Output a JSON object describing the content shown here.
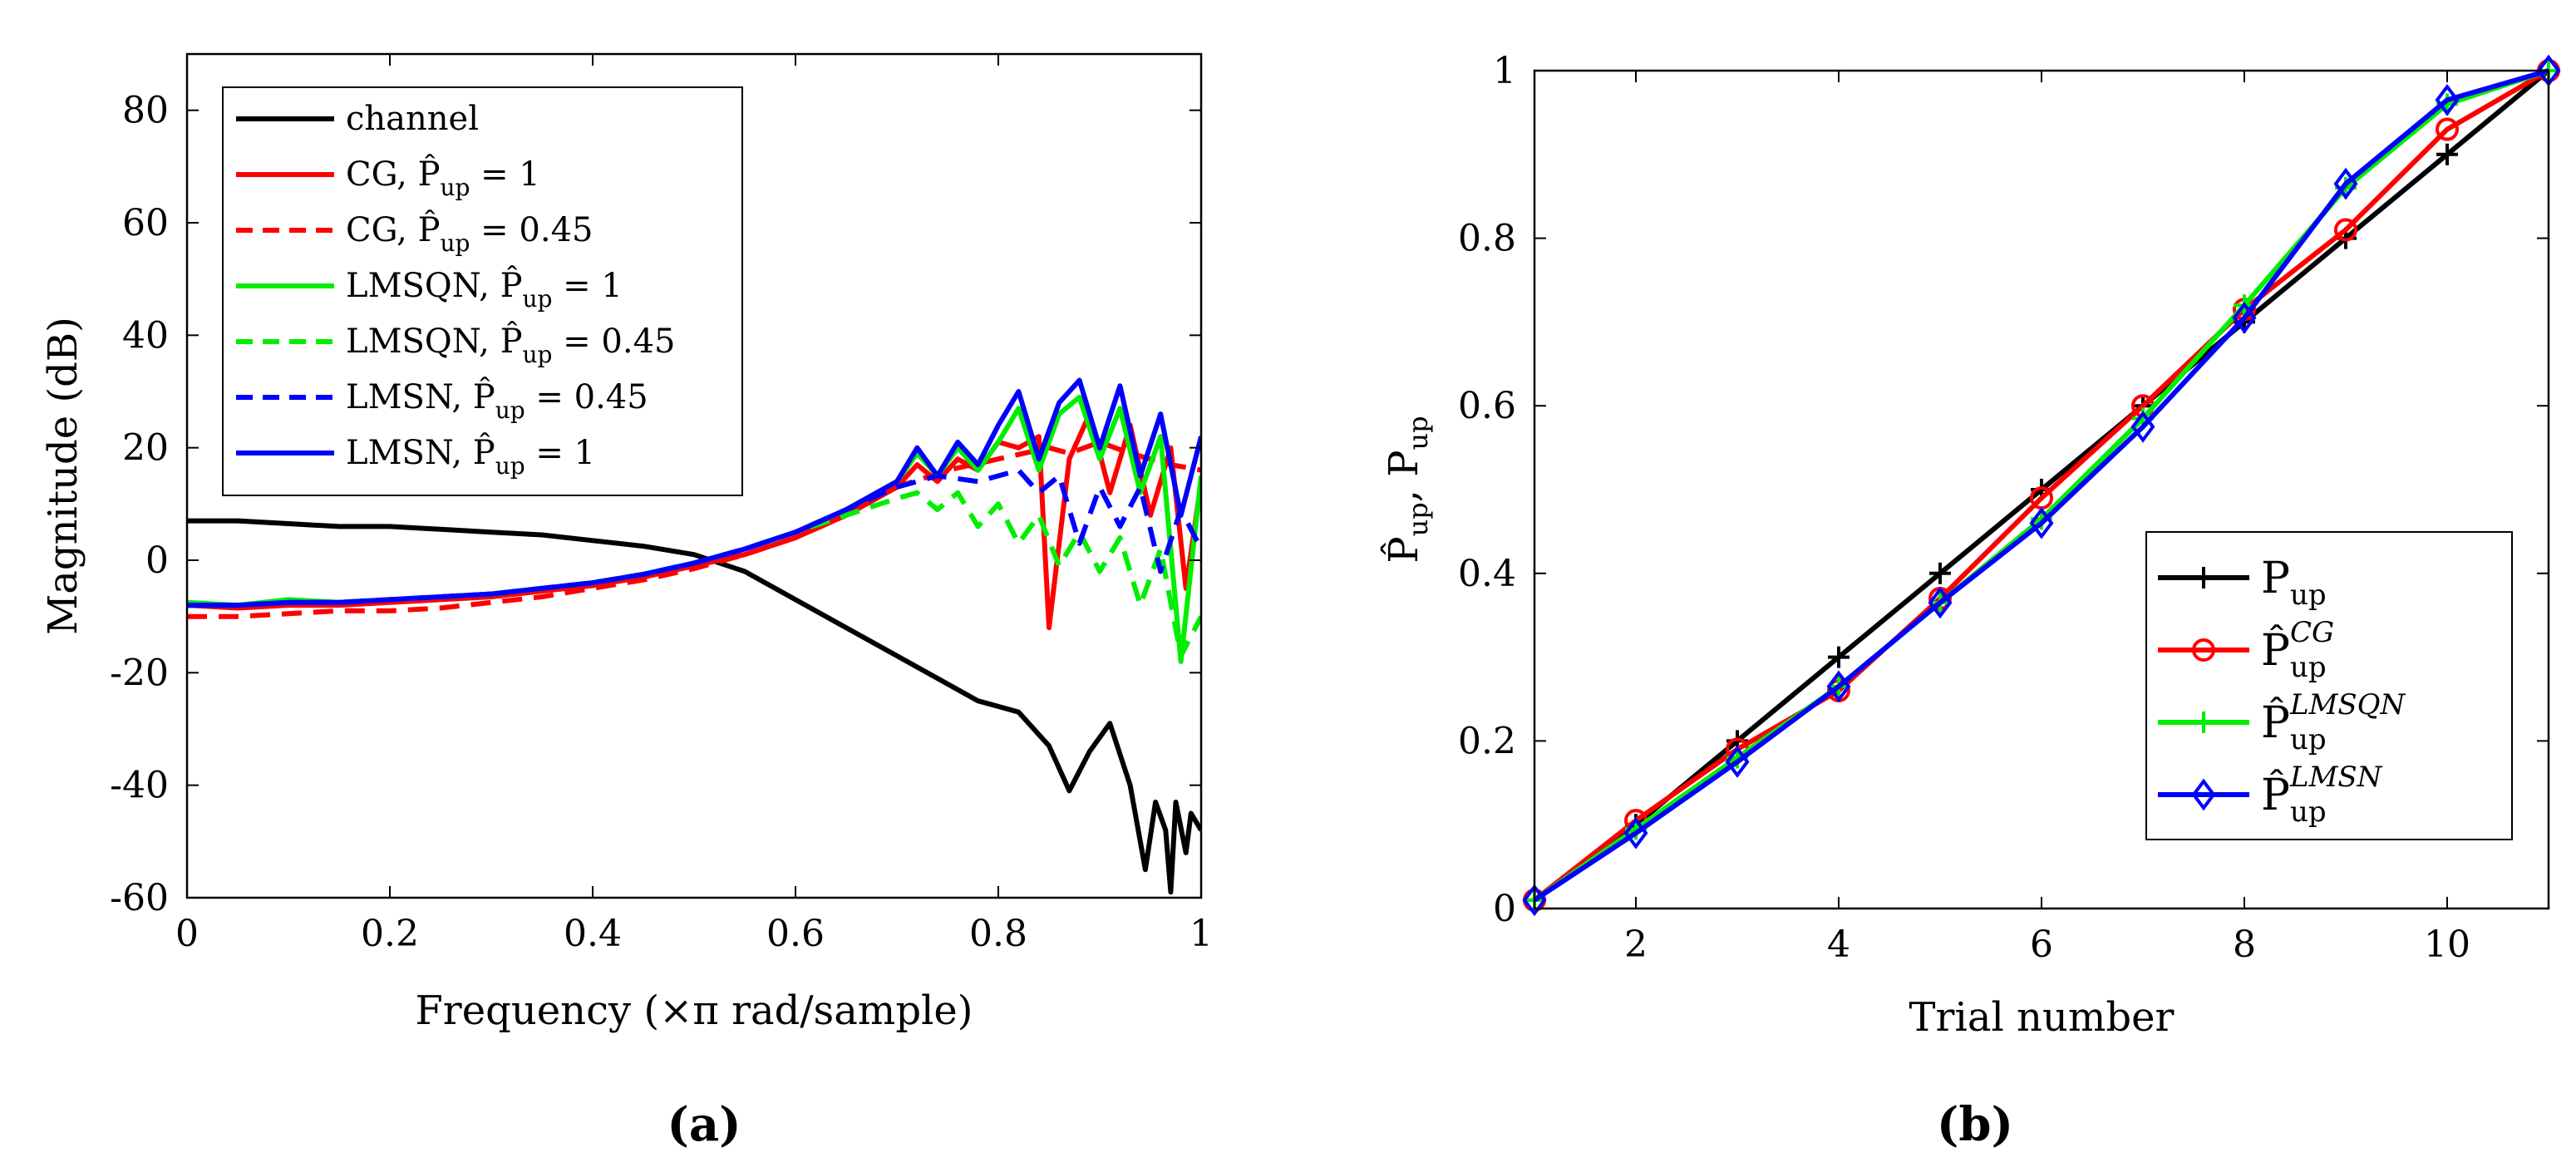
{
  "panels": [
    {
      "label": "(a)"
    },
    {
      "label": "(b)"
    }
  ],
  "chart_data": [
    {
      "type": "line",
      "title": "",
      "xlabel": "Frequency (×π rad/sample)",
      "ylabel": "Magnitude (dB)",
      "xlim": [
        0,
        1
      ],
      "ylim": [
        -60,
        90
      ],
      "xticks": [
        0,
        0.2,
        0.4,
        0.6,
        0.8,
        1
      ],
      "xtick_labels": [
        "0",
        "0.2",
        "0.4",
        "0.6",
        "0.8",
        "1"
      ],
      "yticks": [
        -60,
        -40,
        -20,
        0,
        20,
        40,
        60,
        80
      ],
      "ytick_labels": [
        "-60",
        "-40",
        "-20",
        "0",
        "20",
        "40",
        "60",
        "80"
      ],
      "grid": false,
      "legend_position": "top-left",
      "series": [
        {
          "name": "channel",
          "label_main": "channel",
          "label_sub": "",
          "label_rest": "",
          "color": "#000000",
          "dash": "solid",
          "x": [
            0,
            0.05,
            0.1,
            0.15,
            0.2,
            0.25,
            0.3,
            0.35,
            0.4,
            0.45,
            0.5,
            0.55,
            0.6,
            0.65,
            0.7,
            0.75,
            0.78,
            0.8,
            0.82,
            0.85,
            0.87,
            0.89,
            0.91,
            0.93,
            0.945,
            0.955,
            0.965,
            0.97,
            0.975,
            0.985,
            0.99,
            1.0
          ],
          "y": [
            7,
            7,
            6.5,
            6,
            6,
            5.5,
            5,
            4.5,
            3.5,
            2.5,
            1,
            -2,
            -7,
            -12,
            -17,
            -22,
            -25,
            -26,
            -27,
            -33,
            -41,
            -34,
            -29,
            -40,
            -55,
            -43,
            -48,
            -59,
            -43,
            -52,
            -45,
            -48
          ]
        },
        {
          "name": "CG, P̂up = 1",
          "label_main": "CG, P̂",
          "label_sub": "up",
          "label_rest": " = 1",
          "color": "#ff0000",
          "dash": "solid",
          "x": [
            0,
            0.05,
            0.1,
            0.15,
            0.2,
            0.25,
            0.3,
            0.35,
            0.4,
            0.45,
            0.5,
            0.55,
            0.6,
            0.65,
            0.7,
            0.72,
            0.74,
            0.76,
            0.78,
            0.8,
            0.82,
            0.84,
            0.85,
            0.87,
            0.89,
            0.91,
            0.93,
            0.95,
            0.97,
            0.985,
            1.0
          ],
          "y": [
            -8,
            -8.5,
            -8,
            -8,
            -7.5,
            -7,
            -6.5,
            -5.5,
            -4.5,
            -3,
            -1,
            1,
            4,
            8,
            13,
            17,
            14,
            18,
            16,
            21,
            20,
            22,
            -12,
            18,
            26,
            12,
            24,
            8,
            20,
            -5,
            14
          ]
        },
        {
          "name": "CG, P̂up = 0.45",
          "label_main": "CG, P̂",
          "label_sub": "up",
          "label_rest": " = 0.45",
          "color": "#ff0000",
          "dash": "dashed",
          "x": [
            0,
            0.05,
            0.1,
            0.15,
            0.2,
            0.25,
            0.3,
            0.35,
            0.4,
            0.45,
            0.5,
            0.55,
            0.6,
            0.65,
            0.7,
            0.75,
            0.8,
            0.85,
            0.87,
            0.9,
            0.93,
            0.95,
            0.97,
            1.0
          ],
          "y": [
            -10,
            -10,
            -9.5,
            -9,
            -9,
            -8.5,
            -7.5,
            -6.5,
            -5,
            -3.5,
            -1.5,
            1,
            4,
            8,
            13,
            16,
            18,
            20,
            19,
            21,
            19,
            18,
            17,
            16
          ]
        },
        {
          "name": "LMSQN, P̂up = 1",
          "label_main": "LMSQN, P̂",
          "label_sub": "up",
          "label_rest": " = 1",
          "color": "#00ee00",
          "dash": "solid",
          "x": [
            0,
            0.05,
            0.1,
            0.15,
            0.2,
            0.25,
            0.3,
            0.35,
            0.4,
            0.45,
            0.5,
            0.55,
            0.6,
            0.65,
            0.7,
            0.72,
            0.74,
            0.76,
            0.78,
            0.8,
            0.82,
            0.84,
            0.86,
            0.88,
            0.9,
            0.92,
            0.94,
            0.96,
            0.98,
            1.0
          ],
          "y": [
            -7.5,
            -8,
            -7,
            -7.5,
            -7,
            -6.5,
            -6,
            -5,
            -4,
            -2.5,
            -0.5,
            2,
            5,
            9,
            14,
            19,
            15,
            20,
            16,
            21,
            27,
            16,
            26,
            29,
            18,
            27,
            12,
            22,
            -18,
            15
          ]
        },
        {
          "name": "LMSQN, P̂up = 0.45",
          "label_main": "LMSQN, P̂",
          "label_sub": "up",
          "label_rest": " = 0.45",
          "color": "#00ee00",
          "dash": "dashed",
          "x": [
            0,
            0.05,
            0.1,
            0.15,
            0.2,
            0.25,
            0.3,
            0.35,
            0.4,
            0.45,
            0.5,
            0.55,
            0.6,
            0.65,
            0.7,
            0.72,
            0.74,
            0.76,
            0.78,
            0.8,
            0.82,
            0.84,
            0.86,
            0.88,
            0.9,
            0.92,
            0.94,
            0.96,
            0.98,
            1.0
          ],
          "y": [
            -8,
            -8,
            -7.5,
            -7.5,
            -7,
            -6.5,
            -6,
            -5,
            -4,
            -2.5,
            -0.5,
            2,
            5,
            8,
            11,
            12,
            9,
            12,
            6,
            10,
            3,
            8,
            -1,
            5,
            -2,
            4,
            -8,
            2,
            -17,
            -10
          ]
        },
        {
          "name": "LMSN, P̂up = 0.45",
          "label_main": "LMSN, P̂",
          "label_sub": "up",
          "label_rest": " = 0.45",
          "color": "#0000ff",
          "dash": "dashed",
          "x": [
            0,
            0.05,
            0.1,
            0.15,
            0.2,
            0.25,
            0.3,
            0.35,
            0.4,
            0.45,
            0.5,
            0.55,
            0.6,
            0.65,
            0.7,
            0.74,
            0.78,
            0.82,
            0.84,
            0.86,
            0.88,
            0.9,
            0.92,
            0.94,
            0.96,
            0.98,
            1.0
          ],
          "y": [
            -8,
            -8,
            -7.5,
            -7.5,
            -7,
            -6.5,
            -6,
            -5,
            -4,
            -2.5,
            -0.5,
            2,
            5,
            9,
            13,
            15,
            14,
            16,
            12,
            15,
            3,
            13,
            6,
            13,
            -2,
            9,
            2
          ]
        },
        {
          "name": "LMSN, P̂up = 1",
          "label_main": "LMSN, P̂",
          "label_sub": "up",
          "label_rest": " = 1",
          "color": "#0000ff",
          "dash": "solid",
          "x": [
            0,
            0.05,
            0.1,
            0.15,
            0.2,
            0.25,
            0.3,
            0.35,
            0.4,
            0.45,
            0.5,
            0.55,
            0.6,
            0.65,
            0.7,
            0.72,
            0.74,
            0.76,
            0.78,
            0.8,
            0.82,
            0.84,
            0.86,
            0.88,
            0.9,
            0.92,
            0.94,
            0.96,
            0.98,
            1.0
          ],
          "y": [
            -8,
            -8,
            -7.5,
            -7.5,
            -7,
            -6.5,
            -6,
            -5,
            -4,
            -2.5,
            -0.5,
            2,
            5,
            9,
            14,
            20,
            15,
            21,
            17,
            24,
            30,
            18,
            28,
            32,
            20,
            31,
            15,
            26,
            8,
            22
          ]
        }
      ]
    },
    {
      "type": "line",
      "title": "",
      "xlabel": "Trial number",
      "ylabel_main": "P̂",
      "ylabel_sub": "up",
      "ylabel_mid": ", P",
      "ylabel_sub2": "up",
      "xlim": [
        1,
        11
      ],
      "ylim": [
        0,
        1
      ],
      "xticks": [
        2,
        4,
        6,
        8,
        10
      ],
      "xtick_labels": [
        "2",
        "4",
        "6",
        "8",
        "10"
      ],
      "yticks": [
        0,
        0.2,
        0.4,
        0.6,
        0.8,
        1
      ],
      "ytick_labels": [
        "0",
        "0.2",
        "0.4",
        "0.6",
        "0.8",
        "1"
      ],
      "grid": false,
      "legend_position": "bottom-right",
      "categories": [
        1,
        2,
        3,
        4,
        5,
        6,
        7,
        8,
        9,
        10,
        11
      ],
      "series": [
        {
          "name": "Pup",
          "label_main": "P",
          "label_sub": "up",
          "label_sup": "",
          "color": "#000000",
          "marker": "plus",
          "values": [
            0.01,
            0.1,
            0.2,
            0.3,
            0.4,
            0.5,
            0.6,
            0.7,
            0.8,
            0.9,
            1.0
          ]
        },
        {
          "name": "P̂up^CG",
          "label_main": "P̂",
          "label_sub": "up",
          "label_sup": "CG",
          "color": "#ff0000",
          "marker": "circle",
          "values": [
            0.01,
            0.105,
            0.19,
            0.26,
            0.37,
            0.49,
            0.6,
            0.715,
            0.81,
            0.93,
            1.0
          ]
        },
        {
          "name": "P̂up^LMSQN",
          "label_main": "P̂",
          "label_sub": "up",
          "label_sup": "LMSQN",
          "color": "#00ee00",
          "marker": "plus",
          "values": [
            0.01,
            0.095,
            0.18,
            0.265,
            0.365,
            0.465,
            0.585,
            0.72,
            0.86,
            0.96,
            1.0
          ]
        },
        {
          "name": "P̂up^LMSN",
          "label_main": "P̂",
          "label_sub": "up",
          "label_sup": "LMSN",
          "color": "#0000ff",
          "marker": "diamond",
          "values": [
            0.01,
            0.09,
            0.175,
            0.265,
            0.365,
            0.46,
            0.575,
            0.705,
            0.865,
            0.965,
            1.0
          ]
        }
      ]
    }
  ]
}
